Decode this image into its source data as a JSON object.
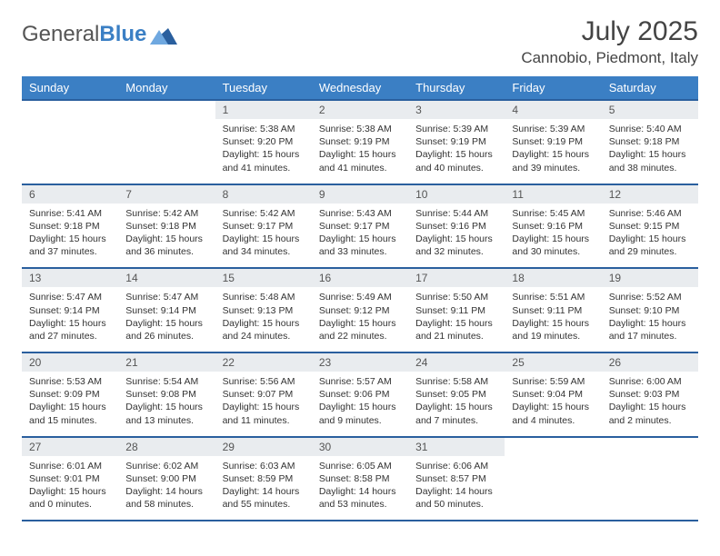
{
  "logo": {
    "word1": "General",
    "word2": "Blue"
  },
  "title": "July 2025",
  "location": "Cannobio, Piedmont, Italy",
  "colors": {
    "header_bg": "#3b7fc4",
    "header_text": "#ffffff",
    "row_divider": "#2a5f9e",
    "daynum_bg": "#e9ecef",
    "text": "#333333",
    "logo_gray": "#555555",
    "logo_blue": "#3b7fc4",
    "logo_mark_light": "#6fa8e0",
    "logo_mark_dark": "#2a5f9e"
  },
  "weekdays": [
    "Sunday",
    "Monday",
    "Tuesday",
    "Wednesday",
    "Thursday",
    "Friday",
    "Saturday"
  ],
  "weeks": [
    [
      {
        "empty": true
      },
      {
        "empty": true
      },
      {
        "num": "1",
        "sunrise": "5:38 AM",
        "sunset": "9:20 PM",
        "daylight": "15 hours and 41 minutes."
      },
      {
        "num": "2",
        "sunrise": "5:38 AM",
        "sunset": "9:19 PM",
        "daylight": "15 hours and 41 minutes."
      },
      {
        "num": "3",
        "sunrise": "5:39 AM",
        "sunset": "9:19 PM",
        "daylight": "15 hours and 40 minutes."
      },
      {
        "num": "4",
        "sunrise": "5:39 AM",
        "sunset": "9:19 PM",
        "daylight": "15 hours and 39 minutes."
      },
      {
        "num": "5",
        "sunrise": "5:40 AM",
        "sunset": "9:18 PM",
        "daylight": "15 hours and 38 minutes."
      }
    ],
    [
      {
        "num": "6",
        "sunrise": "5:41 AM",
        "sunset": "9:18 PM",
        "daylight": "15 hours and 37 minutes."
      },
      {
        "num": "7",
        "sunrise": "5:42 AM",
        "sunset": "9:18 PM",
        "daylight": "15 hours and 36 minutes."
      },
      {
        "num": "8",
        "sunrise": "5:42 AM",
        "sunset": "9:17 PM",
        "daylight": "15 hours and 34 minutes."
      },
      {
        "num": "9",
        "sunrise": "5:43 AM",
        "sunset": "9:17 PM",
        "daylight": "15 hours and 33 minutes."
      },
      {
        "num": "10",
        "sunrise": "5:44 AM",
        "sunset": "9:16 PM",
        "daylight": "15 hours and 32 minutes."
      },
      {
        "num": "11",
        "sunrise": "5:45 AM",
        "sunset": "9:16 PM",
        "daylight": "15 hours and 30 minutes."
      },
      {
        "num": "12",
        "sunrise": "5:46 AM",
        "sunset": "9:15 PM",
        "daylight": "15 hours and 29 minutes."
      }
    ],
    [
      {
        "num": "13",
        "sunrise": "5:47 AM",
        "sunset": "9:14 PM",
        "daylight": "15 hours and 27 minutes."
      },
      {
        "num": "14",
        "sunrise": "5:47 AM",
        "sunset": "9:14 PM",
        "daylight": "15 hours and 26 minutes."
      },
      {
        "num": "15",
        "sunrise": "5:48 AM",
        "sunset": "9:13 PM",
        "daylight": "15 hours and 24 minutes."
      },
      {
        "num": "16",
        "sunrise": "5:49 AM",
        "sunset": "9:12 PM",
        "daylight": "15 hours and 22 minutes."
      },
      {
        "num": "17",
        "sunrise": "5:50 AM",
        "sunset": "9:11 PM",
        "daylight": "15 hours and 21 minutes."
      },
      {
        "num": "18",
        "sunrise": "5:51 AM",
        "sunset": "9:11 PM",
        "daylight": "15 hours and 19 minutes."
      },
      {
        "num": "19",
        "sunrise": "5:52 AM",
        "sunset": "9:10 PM",
        "daylight": "15 hours and 17 minutes."
      }
    ],
    [
      {
        "num": "20",
        "sunrise": "5:53 AM",
        "sunset": "9:09 PM",
        "daylight": "15 hours and 15 minutes."
      },
      {
        "num": "21",
        "sunrise": "5:54 AM",
        "sunset": "9:08 PM",
        "daylight": "15 hours and 13 minutes."
      },
      {
        "num": "22",
        "sunrise": "5:56 AM",
        "sunset": "9:07 PM",
        "daylight": "15 hours and 11 minutes."
      },
      {
        "num": "23",
        "sunrise": "5:57 AM",
        "sunset": "9:06 PM",
        "daylight": "15 hours and 9 minutes."
      },
      {
        "num": "24",
        "sunrise": "5:58 AM",
        "sunset": "9:05 PM",
        "daylight": "15 hours and 7 minutes."
      },
      {
        "num": "25",
        "sunrise": "5:59 AM",
        "sunset": "9:04 PM",
        "daylight": "15 hours and 4 minutes."
      },
      {
        "num": "26",
        "sunrise": "6:00 AM",
        "sunset": "9:03 PM",
        "daylight": "15 hours and 2 minutes."
      }
    ],
    [
      {
        "num": "27",
        "sunrise": "6:01 AM",
        "sunset": "9:01 PM",
        "daylight": "15 hours and 0 minutes."
      },
      {
        "num": "28",
        "sunrise": "6:02 AM",
        "sunset": "9:00 PM",
        "daylight": "14 hours and 58 minutes."
      },
      {
        "num": "29",
        "sunrise": "6:03 AM",
        "sunset": "8:59 PM",
        "daylight": "14 hours and 55 minutes."
      },
      {
        "num": "30",
        "sunrise": "6:05 AM",
        "sunset": "8:58 PM",
        "daylight": "14 hours and 53 minutes."
      },
      {
        "num": "31",
        "sunrise": "6:06 AM",
        "sunset": "8:57 PM",
        "daylight": "14 hours and 50 minutes."
      },
      {
        "empty": true
      },
      {
        "empty": true
      }
    ]
  ],
  "labels": {
    "sunrise": "Sunrise:",
    "sunset": "Sunset:",
    "daylight": "Daylight:"
  }
}
